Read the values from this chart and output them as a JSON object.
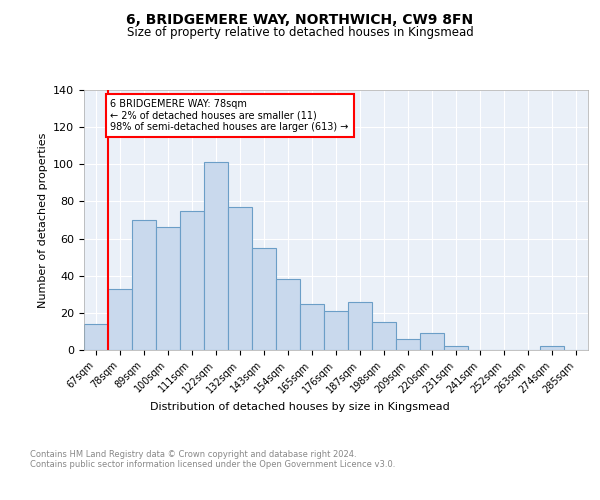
{
  "title1": "6, BRIDGEMERE WAY, NORTHWICH, CW9 8FN",
  "title2": "Size of property relative to detached houses in Kingsmead",
  "xlabel": "Distribution of detached houses by size in Kingsmead",
  "ylabel": "Number of detached properties",
  "bar_labels": [
    "67sqm",
    "78sqm",
    "89sqm",
    "100sqm",
    "111sqm",
    "122sqm",
    "132sqm",
    "143sqm",
    "154sqm",
    "165sqm",
    "176sqm",
    "187sqm",
    "198sqm",
    "209sqm",
    "220sqm",
    "231sqm",
    "241sqm",
    "252sqm",
    "263sqm",
    "274sqm",
    "285sqm"
  ],
  "bar_values": [
    14,
    33,
    70,
    66,
    75,
    101,
    77,
    55,
    38,
    25,
    21,
    26,
    15,
    6,
    9,
    2,
    0,
    0,
    0,
    2,
    0
  ],
  "bar_color": "#c9d9ed",
  "bar_edge_color": "#6b9ec7",
  "redline_index": 1,
  "annotation_text": "6 BRIDGEMERE WAY: 78sqm\n← 2% of detached houses are smaller (11)\n98% of semi-detached houses are larger (613) →",
  "annotation_box_color": "white",
  "annotation_box_edge": "red",
  "footer_text": "Contains HM Land Registry data © Crown copyright and database right 2024.\nContains public sector information licensed under the Open Government Licence v3.0.",
  "ylim": [
    0,
    140
  ],
  "yticks": [
    0,
    20,
    40,
    60,
    80,
    100,
    120,
    140
  ],
  "plot_bg_color": "#eaf0f8",
  "grid_color": "white"
}
